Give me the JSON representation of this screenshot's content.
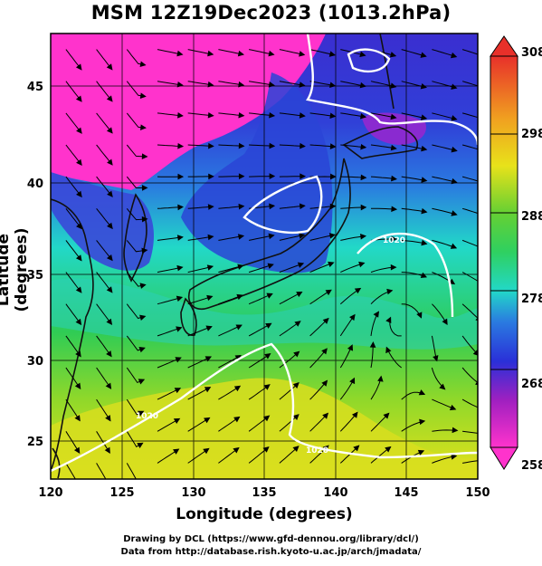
{
  "header": {
    "title": "MSM 12Z19Dec2023 (1013.2hPa)"
  },
  "axes": {
    "xlabel": "Longitude (degrees)",
    "ylabel": "Latitude  (degrees)",
    "xticks": [
      "120",
      "125",
      "130",
      "135",
      "140",
      "145",
      "150"
    ],
    "yticks": [
      "25",
      "30",
      "35",
      "40",
      "45"
    ],
    "xlim": [
      120,
      150
    ],
    "ylim": [
      22.4,
      47.6
    ]
  },
  "colorbar": {
    "ticks": [
      "258",
      "268",
      "278",
      "288",
      "298",
      "308"
    ],
    "range": [
      258,
      308
    ]
  },
  "isobars": [
    "1020",
    "1020",
    "1020"
  ],
  "colors": {
    "cold_magenta": "#ff33cc",
    "cold_blue": "#2a3ad6",
    "mid_cyan": "#22d8c8",
    "mid_green": "#33cc33",
    "warm_yellow": "#e8e21a",
    "hot_red": "#e8302a",
    "contour": "#ffffff",
    "streamline": "#000000"
  },
  "footer": {
    "line1": "Drawing by DCL (https://www.gfd-dennou.org/library/dcl/)",
    "line2": "Data from http://database.rish.kyoto-u.ac.jp/arch/jmadata/"
  }
}
